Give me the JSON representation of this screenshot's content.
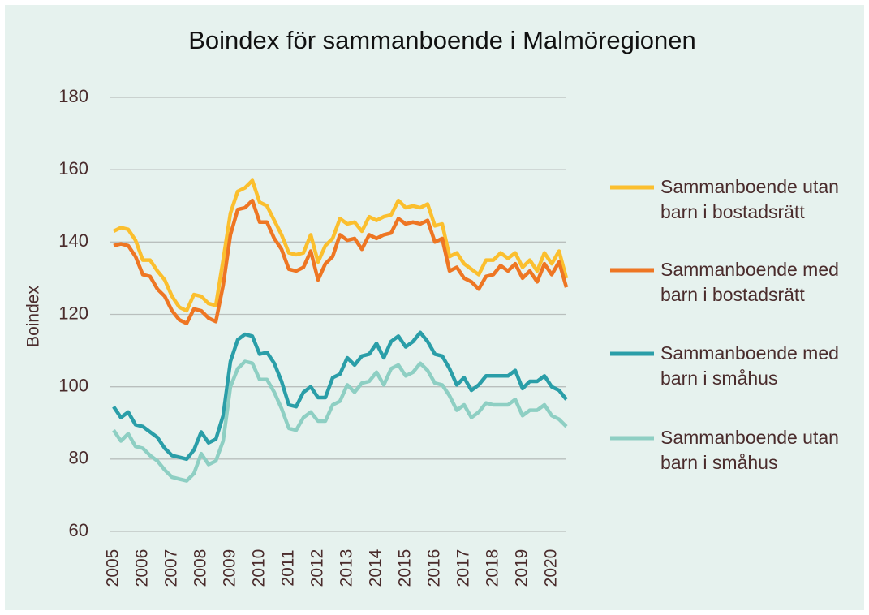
{
  "chart_data": {
    "type": "line",
    "title": "Boindex för sammanboende i Malmöregionen",
    "y_label": "Boindex",
    "categories": [
      "2005",
      null,
      null,
      null,
      "2006",
      null,
      null,
      null,
      "2007",
      null,
      null,
      null,
      "2008",
      null,
      null,
      null,
      "2009",
      null,
      null,
      null,
      "2010",
      null,
      null,
      null,
      "2011",
      null,
      null,
      null,
      "2012",
      null,
      null,
      null,
      "2013",
      null,
      null,
      null,
      "2014",
      null,
      null,
      null,
      "2015",
      null,
      null,
      null,
      "2016",
      null,
      null,
      null,
      "2017",
      null,
      null,
      null,
      "2018",
      null,
      null,
      null,
      "2019",
      null,
      null,
      null,
      "2020",
      null,
      null
    ],
    "ylim": [
      60,
      180
    ],
    "yticks": [
      60,
      80,
      100,
      120,
      140,
      160,
      180
    ],
    "grid": true,
    "legend": "right",
    "series": [
      {
        "name": "Sammanboende utan barn i bostadsrätt",
        "color": "#fbbf2e",
        "values": [
          143,
          144,
          143.5,
          140.5,
          135,
          135,
          132,
          129.5,
          125,
          122,
          121,
          125.5,
          125,
          123,
          122.5,
          135,
          148,
          154,
          155,
          157,
          151,
          150,
          146,
          142,
          137,
          136.5,
          137,
          142,
          134.5,
          139,
          141,
          146.5,
          145,
          145.5,
          143,
          147,
          146,
          147,
          147.5,
          151.5,
          149.5,
          150,
          149.5,
          150.5,
          144.5,
          145,
          136,
          137,
          134,
          132.5,
          131,
          135,
          135,
          137,
          135.5,
          137,
          133,
          135,
          132,
          137,
          134,
          137.5,
          130
        ]
      },
      {
        "name": "Sammanboende med barn i bostadsrätt",
        "color": "#ee7623",
        "values": [
          139,
          139.5,
          139,
          136,
          131,
          130.5,
          127,
          125,
          121,
          118.5,
          117.5,
          121.5,
          121,
          119,
          118,
          128,
          142,
          149,
          149.5,
          151.5,
          145.5,
          145.5,
          141,
          138,
          132.5,
          132,
          133,
          137.5,
          129.5,
          134,
          136,
          142,
          140.5,
          141,
          138,
          142,
          141,
          142,
          142.5,
          146.5,
          145,
          145.5,
          145,
          146,
          140,
          141,
          132,
          133,
          130,
          129,
          127,
          130.5,
          131,
          133.5,
          132,
          134,
          130,
          132,
          129,
          134,
          131,
          134.5,
          127.5
        ]
      },
      {
        "name": "Sammanboende med barn i småhus",
        "color": "#2a9ea8",
        "values": [
          94.5,
          91.5,
          93,
          89.5,
          89,
          87.5,
          86,
          83,
          81,
          80.5,
          80,
          82.5,
          87.5,
          84.5,
          85.5,
          92,
          107,
          113,
          114.5,
          114,
          109,
          109.5,
          106.5,
          101.5,
          95,
          94.5,
          98.5,
          100,
          97,
          97,
          102.5,
          103.5,
          108,
          106,
          108.5,
          109,
          112,
          108,
          112.5,
          114,
          111,
          112.5,
          115,
          112.5,
          109,
          108.5,
          105,
          100.5,
          102.5,
          99,
          100.5,
          103,
          103,
          103,
          103,
          104.5,
          99.5,
          101.5,
          101.5,
          103,
          100,
          99,
          96.5
        ]
      },
      {
        "name": "Sammanboende utan barn i småhus",
        "color": "#8ecfc3",
        "values": [
          88,
          85,
          87,
          83.5,
          83,
          81,
          79.5,
          77,
          75,
          74.5,
          74,
          76,
          81.5,
          78.5,
          79.5,
          85,
          100,
          105,
          107,
          106.5,
          102,
          102,
          98.5,
          94,
          88.5,
          88,
          91.5,
          93,
          90.5,
          90.5,
          95,
          96,
          100.5,
          98.5,
          101,
          101.5,
          104,
          100.5,
          105,
          106,
          103,
          104,
          106.5,
          104.5,
          101,
          100.5,
          97.5,
          93.5,
          95,
          91.5,
          93,
          95.5,
          95,
          95,
          95,
          96.5,
          92,
          93.5,
          93.5,
          95,
          92,
          91,
          89
        ]
      }
    ]
  }
}
